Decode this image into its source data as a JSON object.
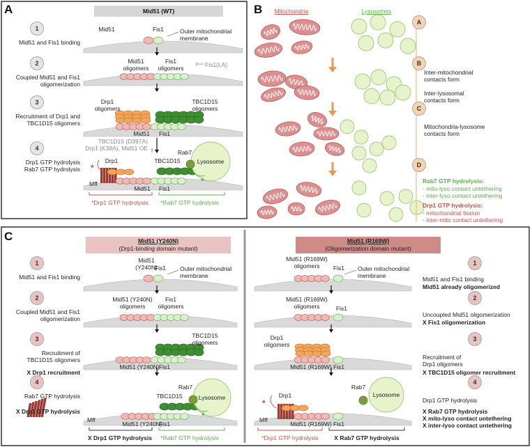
{
  "colors": {
    "mid51": "#f1b9b6",
    "fis1": "#d9f0cc",
    "drp1": "#f3a55a",
    "tbc": "#3f8f32",
    "rab7": "#7a9e3a",
    "lysosome": "#e7f3cb",
    "mito": "#dc8f8e",
    "stepA": "#dddddd",
    "stepC": "#d8a6a4",
    "red": "#c6534b",
    "green": "#5cb04a"
  },
  "panelA": {
    "letter": "A",
    "banner": "Mid51 (WT)",
    "steps": [
      {
        "num": "1",
        "desc": "Mid51 and Fis1 binding"
      },
      {
        "num": "2",
        "desc": "Coupled Mid51 and Fis1\noligomerization"
      },
      {
        "num": "3",
        "desc": "Recruitment of Drp1 and\nTBC1D15 oligomers"
      },
      {
        "num": "4",
        "desc": "Drp1 GTP hydrolysis\nRab7 GTP hydrolysis"
      }
    ],
    "labels": {
      "mid51": "Mid51",
      "fis1": "Fis1",
      "outer": "Outer mitochondrial\nmembrane",
      "mid51_olig": "Mid51\noligomers",
      "fis1_olig": "Fis1\noligomers",
      "fis1la": "Fis1(LA)",
      "drp1_olig": "Drp1\noligomers",
      "tbc_olig": "TBC1D15\noligomers",
      "mid51_3": "Mid51",
      "fis1_3": "Fis1",
      "inhib": "TBC1D15 (D397A)\nDrp1 (K38A), Mid51 OE",
      "drp1": "Drp1",
      "rab7": "Rab7",
      "tbc": "TBC1D15",
      "lysosome": "Lysosome",
      "mff": "Mff",
      "mid51_4": "Mid51",
      "fis1_4": "Fis1",
      "star": "*",
      "drp1_hyd": "*Drp1 GTP hydrolysis",
      "rab7_hyd": "*Rab7 GTP hydrolysis"
    }
  },
  "panelB": {
    "letter": "B",
    "mito_title": "Mitochondria",
    "lyso_title": "Lysosomes",
    "steps": [
      {
        "num": "A",
        "desc": ""
      },
      {
        "num": "B",
        "desc": "Inter-mitochondrial\ncontacts form\n\nInter-lysosomal\ncontacts form"
      },
      {
        "num": "C",
        "desc": "Mitochondria-lysosome\ncontacts form"
      },
      {
        "num": "D",
        "desc": ""
      }
    ],
    "rab7_head": "Rab7 GTP hydrolysis:",
    "rab7_items": [
      "- mito-lyso contact untethering",
      "- inter-lyso contact untethering"
    ],
    "drp1_head": "Drp1 GTP hydrolysis:",
    "drp1_items": [
      "- mitochondrial fission",
      "- inter-mito contact untethering"
    ]
  },
  "panelC": {
    "letter": "C",
    "left": {
      "banner_title": "Mid51 (Y240N)",
      "banner_sub": "(Drp1-binding domain mutant)",
      "steps": [
        {
          "num": "1",
          "desc": "Mid51 and Fis1 binding",
          "desc2": ""
        },
        {
          "num": "2",
          "desc": "Coupled Mid51 and Fis1\noligomerization",
          "desc2": ""
        },
        {
          "num": "3",
          "desc": "Recruitment of\nTBC1D15 oligomers",
          "desc2": "X Drp1 recruitment"
        },
        {
          "num": "4",
          "desc": "Rab7 GTP hydrolysis",
          "desc2": "X Drp1 GTP hydrolysis"
        }
      ],
      "labels": {
        "mid51": "Mid51\n(Y240N)",
        "fis1": "Fis1",
        "outer": "Outer mitochondrial\nmembrane",
        "mid51_olig": "Mid51 (Y240N)\noligomers",
        "fis1_olig": "Fis1\noligomers",
        "tbc_olig": "TBC1D15\noligomers",
        "mid51_3": "Mid51 (Y240N)",
        "fis1_3": "Fis1",
        "rab7": "Rab7",
        "tbc": "TBC1D15",
        "lysosome": "Lysosome",
        "mff": "Mff",
        "mid51_4": "Mid51 (Y240N)",
        "fis1_4": "Fis1",
        "star": "*",
        "drp1_hyd": "X Drp1 GTP hydrolysis",
        "rab7_hyd": "*Rab7 GTP hydrolysis"
      }
    },
    "right": {
      "banner_title": "Mid51 (R169W)",
      "banner_sub": "(Oligomerization domain mutant)",
      "steps": [
        {
          "num": "1",
          "desc": "Mid51 and Fis1 binding",
          "desc2": "Mid51 already oligomerized"
        },
        {
          "num": "2",
          "desc": "Uncoupled Mid51 oligomerization",
          "desc2": "X Fis1 oligomerization"
        },
        {
          "num": "3",
          "desc": "Recruitment of\nDrp1 oligomers",
          "desc2": "X TBC1D15 oligomer recruitment"
        },
        {
          "num": "4",
          "desc": "Drp1 GTP hydrolysis",
          "desc2": "X Rab7 GTP hydrolysis\nX mito-lyso contact untethering\nX inter-lyso contact untethering"
        }
      ],
      "labels": {
        "mid51": "Mid51 (R169W)\noligomers",
        "fis1": "Fis1",
        "outer": "Outer mitochondrial\nmembrane",
        "mid51_2": "Mid51 (R169W)\noligomers",
        "fis1_2": "Fis1",
        "drp1_olig": "Drp1\noligomers",
        "mid51_3": "Mid51 (R169W)",
        "fis1_3": "Fis1",
        "drp1": "Drp1",
        "rab7": "Rab7",
        "lysosome": "Lysosome",
        "mff": "Mff",
        "mid51_4": "Mid51 (R169W)",
        "fis1_4": "Fis1",
        "star": "*",
        "drp1_hyd": "*Drp1 GTP hydrolysis",
        "rab7_hyd": "X Rab7 GTP hydrolysis"
      }
    }
  }
}
